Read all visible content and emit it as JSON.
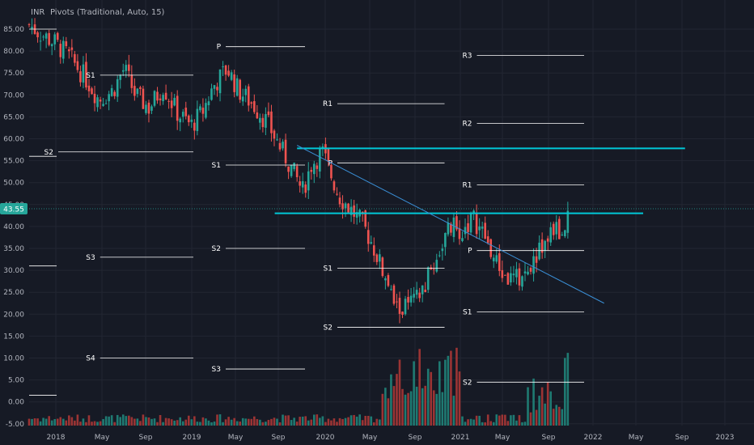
{
  "legend": {
    "symbol": "INR",
    "indicator": "Pivots (Traditional, Auto, 15)"
  },
  "colors": {
    "background": "#161a25",
    "grid": "#222632",
    "up": "#26a69a",
    "down": "#ef5350",
    "vol_up": "#1f7a72",
    "vol_down": "#9b3434",
    "pivot_line": "#ffffff",
    "horizontal_line": "#00c8d7",
    "trend_line": "#3a8fd6",
    "price_badge": "#26a69a",
    "tick": "#b2b5be"
  },
  "chart_data": {
    "type": "candlestick",
    "y_ticks": [
      "85.00",
      "80.00",
      "75.00",
      "70.00",
      "65.00",
      "60.00",
      "55.00",
      "50.00",
      "45.00",
      "40.00",
      "35.00",
      "30.00",
      "25.00",
      "20.00",
      "15.00",
      "10.00",
      "5.00",
      "0.00",
      "-5.00"
    ],
    "x_ticks": [
      "2018",
      "May",
      "Sep",
      "2019",
      "May",
      "Sep",
      "2020",
      "May",
      "Sep",
      "2021",
      "May",
      "Sep",
      "2022",
      "May",
      "Sep",
      "2023"
    ],
    "ylim": [
      -5.5,
      90
    ],
    "current_price": "43.55",
    "close_path": [
      [
        0,
        86
      ],
      [
        0.4,
        84
      ],
      [
        0.9,
        82
      ],
      [
        1.4,
        79
      ],
      [
        2,
        74
      ],
      [
        2.5,
        69
      ],
      [
        3,
        71
      ],
      [
        3.4,
        76
      ],
      [
        3.8,
        70
      ],
      [
        4.3,
        67
      ],
      [
        4.8,
        72
      ],
      [
        5.3,
        66
      ],
      [
        5.8,
        63
      ],
      [
        6.2,
        66
      ],
      [
        6.6,
        72
      ],
      [
        7.1,
        76
      ],
      [
        7.5,
        71
      ],
      [
        8,
        68
      ],
      [
        8.5,
        64
      ],
      [
        9,
        58
      ],
      [
        9.5,
        52
      ],
      [
        9.8,
        48
      ],
      [
        10.1,
        54
      ],
      [
        10.5,
        57
      ],
      [
        10.8,
        52
      ],
      [
        11.1,
        47
      ],
      [
        11.5,
        44
      ],
      [
        11.9,
        41
      ],
      [
        12.3,
        36
      ],
      [
        12.6,
        31
      ],
      [
        12.9,
        25
      ],
      [
        13.2,
        21
      ],
      [
        13.6,
        22
      ],
      [
        14,
        24
      ],
      [
        14.4,
        30
      ],
      [
        14.8,
        36
      ],
      [
        15.1,
        40
      ],
      [
        15.5,
        39
      ],
      [
        15.9,
        42
      ],
      [
        16.3,
        38
      ],
      [
        16.7,
        32
      ],
      [
        17.1,
        28
      ],
      [
        17.5,
        28
      ],
      [
        17.9,
        30
      ],
      [
        18.2,
        34
      ],
      [
        18.5,
        36
      ],
      [
        18.8,
        40
      ],
      [
        19.1,
        38
      ],
      [
        19.3,
        43.5
      ]
    ],
    "pivot_levels": [
      {
        "label": "P",
        "value": 81,
        "x1": 6.0,
        "x2": 10.0
      },
      {
        "label": "S1",
        "value": 74.5,
        "x1": 1.5,
        "x2": 6.0
      },
      {
        "label": "S2",
        "value": 57,
        "x1": 0,
        "x2": 6.0
      },
      {
        "label": "S1",
        "value": 54,
        "x1": 6.0,
        "x2": 10.0
      },
      {
        "label": "S2",
        "value": 35,
        "x1": 6.0,
        "x2": 10.0
      },
      {
        "label": "S3",
        "value": 33,
        "x1": 1.5,
        "x2": 6.0
      },
      {
        "label": "S4",
        "value": 10,
        "x1": 1.5,
        "x2": 6.0
      },
      {
        "label": "S3",
        "value": 7.5,
        "x1": 6.0,
        "x2": 10.0
      },
      {
        "label": "R1",
        "value": 68,
        "x1": 10.0,
        "x2": 15.0
      },
      {
        "label": "P",
        "value": 54.5,
        "x1": 10.0,
        "x2": 15.0
      },
      {
        "label": "S1",
        "value": 30.5,
        "x1": 10.0,
        "x2": 15.0
      },
      {
        "label": "S2",
        "value": 17,
        "x1": 10.0,
        "x2": 15.0
      },
      {
        "label": "R3",
        "value": 79,
        "x1": 15.0,
        "x2": 20.0
      },
      {
        "label": "R2",
        "value": 63.5,
        "x1": 15.0,
        "x2": 20.0
      },
      {
        "label": "R1",
        "value": 49.5,
        "x1": 15.0,
        "x2": 20.0
      },
      {
        "label": "P",
        "value": 34.5,
        "x1": 15.0,
        "x2": 20.0
      },
      {
        "label": "S1",
        "value": 20.5,
        "x1": 15.0,
        "x2": 20.0
      },
      {
        "label": "S2",
        "value": 4.5,
        "x1": 15.0,
        "x2": 20.0
      }
    ],
    "stub_levels": [
      {
        "value": 85.0
      },
      {
        "value": 56.0
      },
      {
        "value": 31.0
      },
      {
        "value": 1.5
      }
    ],
    "horizontal_lines": [
      {
        "value": 57.8,
        "x1": 9.6,
        "x2": 23.5
      },
      {
        "value": 43.0,
        "x1": 8.8,
        "x2": 22.0
      }
    ],
    "trend_line": {
      "x1": 9.6,
      "y1": 58.5,
      "x2": 20.6,
      "y2": 22.5
    }
  }
}
